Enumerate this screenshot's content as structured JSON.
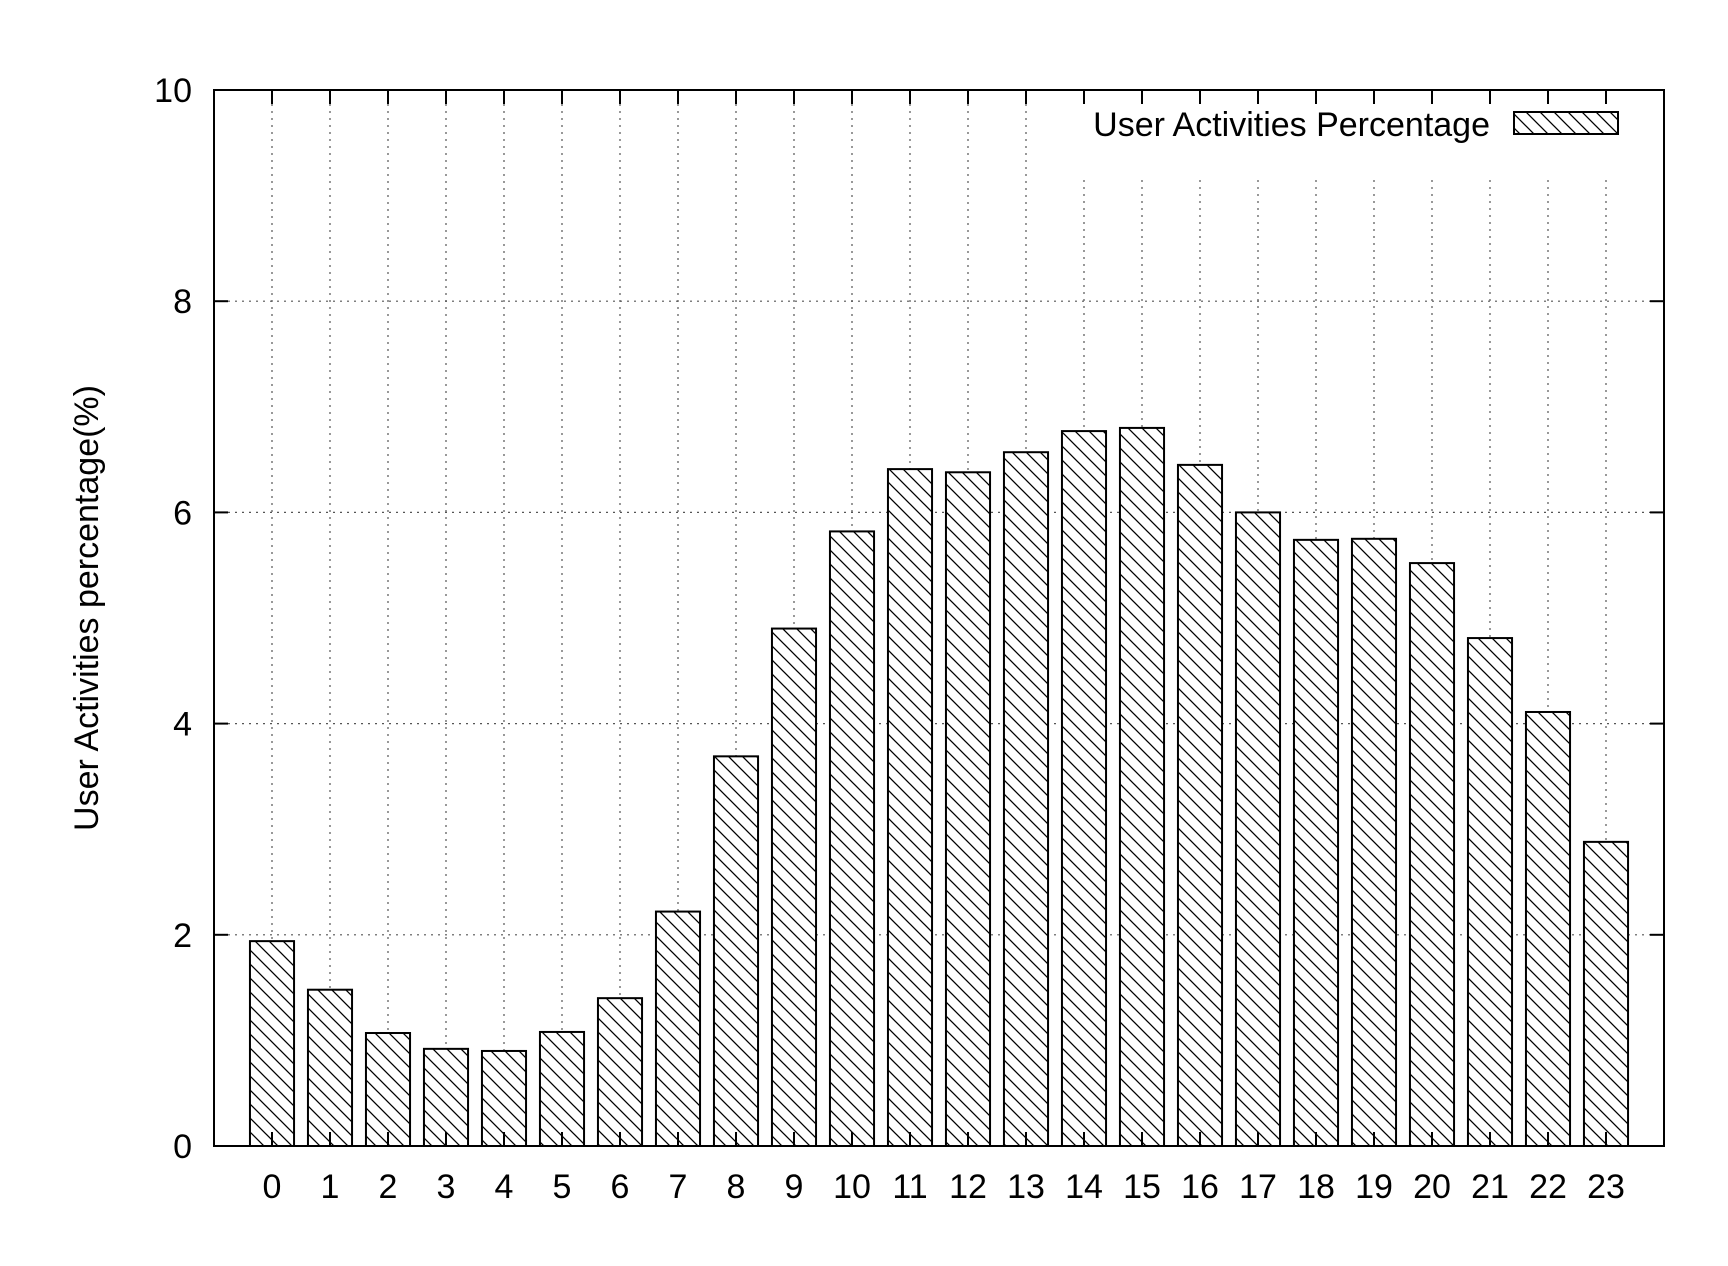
{
  "chart_data": {
    "type": "bar",
    "categories": [
      "0",
      "1",
      "2",
      "3",
      "4",
      "5",
      "6",
      "7",
      "8",
      "9",
      "10",
      "11",
      "12",
      "13",
      "14",
      "15",
      "16",
      "17",
      "18",
      "19",
      "20",
      "21",
      "22",
      "23"
    ],
    "series": [
      {
        "name": "User Activities Percentage",
        "values": [
          1.94,
          1.48,
          1.07,
          0.92,
          0.9,
          1.08,
          1.4,
          2.22,
          3.69,
          4.9,
          5.82,
          6.41,
          6.38,
          6.57,
          6.77,
          6.8,
          6.45,
          6.0,
          5.74,
          5.75,
          5.52,
          4.81,
          4.11,
          2.88
        ]
      }
    ],
    "title": "",
    "xlabel": "",
    "ylabel": "User Activities percentage(%)",
    "ylim": [
      0,
      10
    ],
    "yticks": [
      "0",
      "2",
      "4",
      "6",
      "8",
      "10"
    ],
    "grid": true,
    "legend_position": "top-right",
    "fill": "diagonal-hatch"
  }
}
